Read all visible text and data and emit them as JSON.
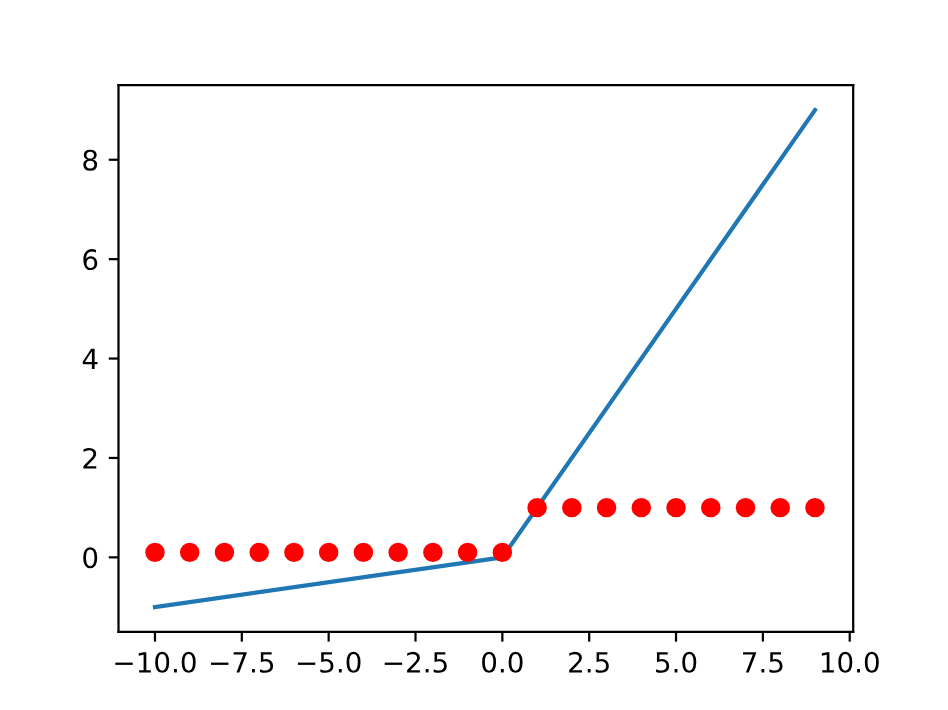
{
  "chart_data": {
    "type": "line",
    "series": [
      {
        "color": "#1f77b4",
        "x": [
          -10,
          0,
          9
        ],
        "values": [
          -1,
          0,
          9
        ],
        "marker": "none"
      },
      {
        "type": "scatter",
        "color": "#ff0000",
        "x": [
          -10,
          -9,
          -8,
          -7,
          -6,
          -5,
          -4,
          -3,
          -2,
          -1,
          0,
          1,
          2,
          3,
          4,
          5,
          6,
          7,
          8,
          9
        ],
        "values": [
          0.1,
          0.1,
          0.1,
          0.1,
          0.1,
          0.1,
          0.1,
          0.1,
          0.1,
          0.1,
          0.1,
          1,
          1,
          1,
          1,
          1,
          1,
          1,
          1,
          1
        ],
        "marker": "circle"
      }
    ],
    "xlim": [
      -11.05,
      10.1
    ],
    "ylim": [
      -1.5,
      9.5
    ],
    "xticks": [
      {
        "value": -10,
        "label": "−10.0"
      },
      {
        "value": -7.5,
        "label": "−7.5"
      },
      {
        "value": -5,
        "label": "−5.0"
      },
      {
        "value": -2.5,
        "label": "−2.5"
      },
      {
        "value": 0,
        "label": "0.0"
      },
      {
        "value": 2.5,
        "label": "2.5"
      },
      {
        "value": 5,
        "label": "5.0"
      },
      {
        "value": 7.5,
        "label": "7.5"
      },
      {
        "value": 10,
        "label": "10.0"
      }
    ],
    "yticks": [
      0,
      2,
      4,
      6,
      8
    ],
    "grid": false,
    "legend": false
  }
}
